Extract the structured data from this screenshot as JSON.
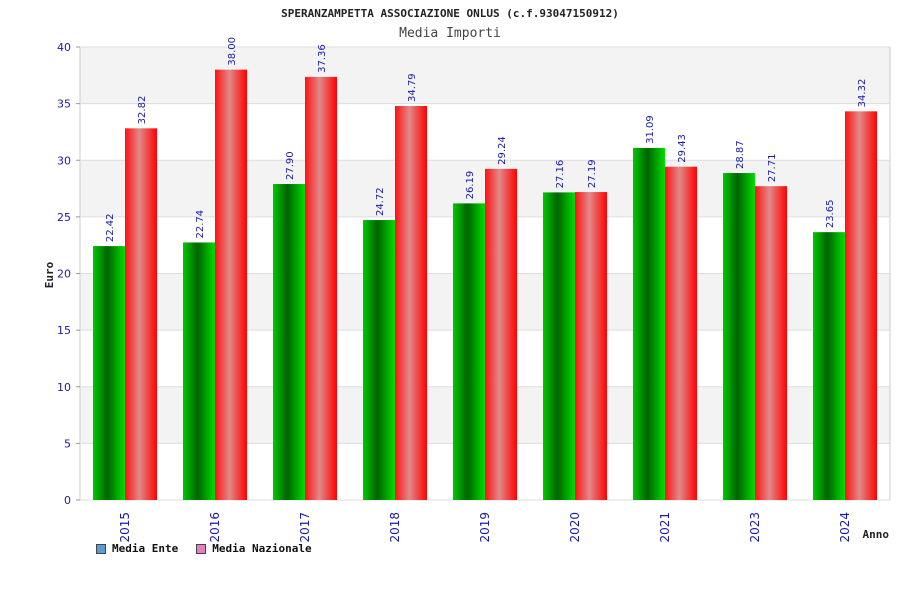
{
  "chart_data": {
    "type": "bar",
    "title": "SPERANZAMPETTA ASSOCIAZIONE ONLUS (c.f.93047150912)",
    "subtitle": "Media Importi",
    "xlabel": "Anno",
    "ylabel": "Euro",
    "categories": [
      "2015",
      "2016",
      "2017",
      "2018",
      "2019",
      "2020",
      "2021",
      "2023",
      "2024"
    ],
    "series": [
      {
        "name": "Media Ente",
        "color": "#00aa00",
        "legend_color": "#5b9bd5",
        "values": [
          22.42,
          22.74,
          27.9,
          24.72,
          26.19,
          27.16,
          31.09,
          28.87,
          23.65
        ],
        "labels": [
          "22.42",
          "22.74",
          "27.90",
          "24.72",
          "26.19",
          "27.16",
          "31.09",
          "28.87",
          "23.65"
        ]
      },
      {
        "name": "Media Nazionale",
        "color": "#ff0000",
        "legend_color": "#e87dbf",
        "values": [
          32.82,
          38.0,
          37.36,
          34.79,
          29.24,
          27.19,
          29.43,
          27.71,
          34.32
        ],
        "labels": [
          "32.82",
          "38.00",
          "37.36",
          "34.79",
          "29.24",
          "27.19",
          "29.43",
          "27.71",
          "34.32"
        ]
      }
    ],
    "ylim": [
      0,
      40
    ],
    "yticks": [
      0,
      5,
      10,
      15,
      20,
      25,
      30,
      35,
      40
    ],
    "grid": true,
    "legend_position": "bottom-left"
  }
}
